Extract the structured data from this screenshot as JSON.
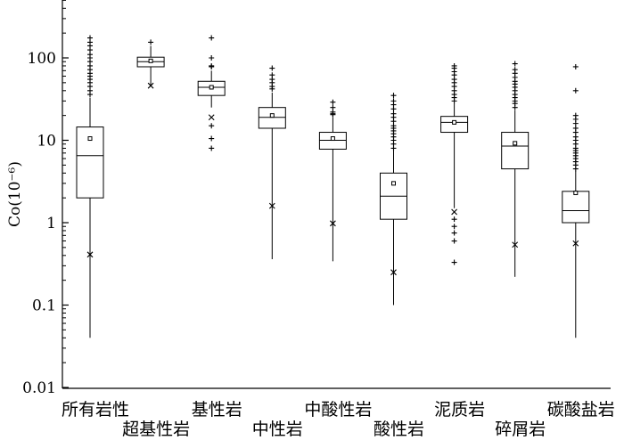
{
  "chart_data": {
    "type": "box",
    "title": "",
    "xlabel": "",
    "ylabel": "Co(10⁻⁶)",
    "yscale": "log",
    "ylim": [
      0.01,
      500
    ],
    "yticks": [
      {
        "value": 100,
        "label": "100"
      },
      {
        "value": 10,
        "label": "10"
      },
      {
        "value": 1,
        "label": "1"
      },
      {
        "value": 0.1,
        "label": "0.1"
      },
      {
        "value": 0.01,
        "label": "0.01"
      }
    ],
    "categories": [
      "所有岩性",
      "超基性岩",
      "基性岩",
      "中性岩",
      "中酸性岩",
      "酸性岩",
      "泥质岩",
      "碎屑岩",
      "碳酸盐岩"
    ],
    "boxes": [
      {
        "category": "所有岩性",
        "whisker_low": 0.04,
        "q1": 2.0,
        "median": 6.5,
        "q3": 14.5,
        "whisker_high": 33,
        "mean": 10.5,
        "min_marker": 0.41,
        "outliers": [
          36,
          40,
          45,
          50,
          55,
          60,
          65,
          72,
          80,
          90,
          100,
          110,
          125,
          140,
          155,
          175
        ]
      },
      {
        "category": "超基性岩",
        "whisker_low": 46,
        "q1": 78,
        "median": 90,
        "q3": 102,
        "whisker_high": 140,
        "mean": 92,
        "min_marker": 46,
        "outliers": [
          155
        ]
      },
      {
        "category": "基性岩",
        "whisker_low": 25,
        "q1": 35,
        "median": 44,
        "q3": 52,
        "whisker_high": 70,
        "mean": 44,
        "min_marker": 19,
        "outliers": [
          15,
          10.5,
          8,
          78,
          80,
          100,
          175
        ]
      },
      {
        "category": "中性岩",
        "whisker_low": 0.36,
        "q1": 14,
        "median": 19,
        "q3": 25,
        "whisker_high": 38,
        "mean": 20,
        "min_marker": 1.6,
        "outliers": [
          42,
          45,
          50,
          55,
          62,
          75
        ]
      },
      {
        "category": "中酸性岩",
        "whisker_low": 0.34,
        "q1": 7.8,
        "median": 10,
        "q3": 12.5,
        "whisker_high": 19,
        "mean": 10.5,
        "min_marker": 0.98,
        "outliers": [
          20.5,
          21,
          22,
          25,
          29
        ]
      },
      {
        "category": "酸性岩",
        "whisker_low": 0.1,
        "q1": 1.1,
        "median": 2.1,
        "q3": 4.0,
        "whisker_high": 7.5,
        "mean": 3.0,
        "min_marker": 0.25,
        "outliers": [
          8,
          9,
          10,
          11,
          12,
          13,
          14,
          15,
          17,
          19,
          21,
          24,
          27,
          30,
          35
        ]
      },
      {
        "category": "泥质岩",
        "whisker_low": 1.5,
        "q1": 12.5,
        "median": 16.5,
        "q3": 19.5,
        "whisker_high": 28,
        "mean": 16.5,
        "min_marker": 1.35,
        "outliers": [
          30,
          33,
          36,
          40,
          45,
          50,
          55,
          62,
          68,
          75,
          80,
          1.1,
          0.9,
          0.75,
          0.6,
          0.33
        ]
      },
      {
        "category": "碎屑岩",
        "whisker_low": 0.22,
        "q1": 4.5,
        "median": 8.5,
        "q3": 12.5,
        "whisker_high": 23,
        "mean": 9.2,
        "min_marker": 0.54,
        "outliers": [
          25,
          28,
          30,
          33,
          36,
          40,
          44,
          48,
          52,
          58,
          65,
          72,
          85
        ]
      },
      {
        "category": "碳酸盐岩",
        "whisker_low": 0.04,
        "q1": 1.0,
        "median": 1.4,
        "q3": 2.4,
        "whisker_high": 4.2,
        "mean": 2.3,
        "min_marker": 0.56,
        "outliers": [
          4.5,
          5,
          5.5,
          6,
          6.5,
          7,
          7.5,
          8,
          9,
          10,
          11,
          12.5,
          14,
          16,
          18,
          20,
          40,
          78
        ]
      }
    ],
    "grid": false,
    "legend": "none"
  }
}
